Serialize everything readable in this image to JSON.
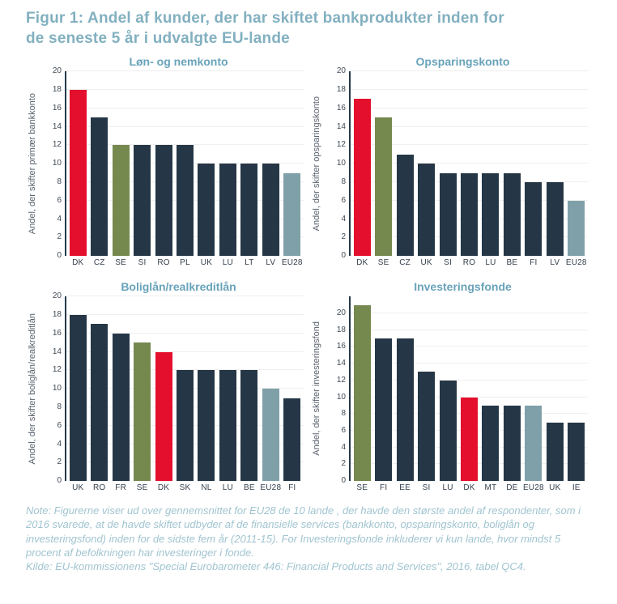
{
  "page": {
    "title_line1": "Figur 1: Andel af kunder, der har skiftet bankprodukter inden for",
    "title_line2": "de seneste 5 år i udvalgte EU-lande"
  },
  "colors": {
    "red": "#e40e2d",
    "navy": "#253746",
    "olive": "#75884e",
    "bluegray": "#7fa0a8",
    "title_blue": "#82b0c0",
    "subtitle_blue": "#69a3ba",
    "note_blue": "#a0c4d0",
    "grid": "#efefef",
    "axis": "#253a4b"
  },
  "chart_data": [
    {
      "type": "bar",
      "title": "Løn- og nemkonto",
      "ylabel": "Andel, der skifter primær bankkonto",
      "categories": [
        "DK",
        "CZ",
        "SE",
        "SI",
        "RO",
        "PL",
        "UK",
        "LU",
        "LT",
        "LV",
        "EU28"
      ],
      "values": [
        18,
        15,
        12,
        12,
        12,
        12,
        10,
        10,
        10,
        10,
        9
      ],
      "bar_colors": [
        "red",
        "navy",
        "olive",
        "navy",
        "navy",
        "navy",
        "navy",
        "navy",
        "navy",
        "navy",
        "bluegray"
      ],
      "ymax": 20,
      "ytick_step": 2,
      "ytick_max": 20,
      "grid": true,
      "legend": "none"
    },
    {
      "type": "bar",
      "title": "Opsparingskonto",
      "ylabel": "Andel, der skifter opsparingskonto",
      "categories": [
        "DK",
        "SE",
        "CZ",
        "UK",
        "SI",
        "RO",
        "LU",
        "BE",
        "FI",
        "LV",
        "EU28"
      ],
      "values": [
        17,
        15,
        11,
        10,
        9,
        9,
        9,
        9,
        8,
        8,
        6
      ],
      "bar_colors": [
        "red",
        "olive",
        "navy",
        "navy",
        "navy",
        "navy",
        "navy",
        "navy",
        "navy",
        "navy",
        "bluegray"
      ],
      "ymax": 20,
      "ytick_step": 2,
      "ytick_max": 20,
      "grid": true,
      "legend": "none"
    },
    {
      "type": "bar",
      "title": "Boliglån/realkreditlån",
      "ylabel": "Andel, der skifter boliglån/realkreditlån",
      "categories": [
        "UK",
        "RO",
        "FR",
        "SE",
        "DK",
        "SK",
        "NL",
        "LU",
        "BE",
        "EU28",
        "FI"
      ],
      "values": [
        18,
        17,
        16,
        15,
        14,
        12,
        12,
        12,
        12,
        10,
        9
      ],
      "bar_colors": [
        "navy",
        "navy",
        "navy",
        "olive",
        "red",
        "navy",
        "navy",
        "navy",
        "navy",
        "bluegray",
        "navy"
      ],
      "ymax": 20,
      "ytick_step": 2,
      "ytick_max": 20,
      "grid": true,
      "legend": "none"
    },
    {
      "type": "bar",
      "title": "Investeringsfonde",
      "ylabel": "Andel, der skifter investeringsfond",
      "categories": [
        "SE",
        "FI",
        "EE",
        "SI",
        "LU",
        "DK",
        "MT",
        "DE",
        "EU28",
        "UK",
        "IE"
      ],
      "values": [
        21,
        17,
        17,
        13,
        12,
        10,
        9,
        9,
        9,
        7,
        7
      ],
      "bar_colors": [
        "olive",
        "navy",
        "navy",
        "navy",
        "navy",
        "red",
        "navy",
        "navy",
        "bluegray",
        "navy",
        "navy"
      ],
      "ymax": 22,
      "ytick_step": 2,
      "ytick_max": 20,
      "grid": true,
      "legend": "none"
    }
  ],
  "note": {
    "body": "Note: Figurerne viser ud over gennemsnittet for EU28 de 10 lande , der havde den største andel af respondenter, som i 2016 svarede, at de havde skiftet udbyder af de finansielle services (bankkonto, opsparingskonto, boliglån og investeringsfond) inden for de sidste fem år (2011-15). For Investeringsfonde inkluderer vi kun lande, hvor mindst 5 procent af befolkningen har investeringer i fonde.",
    "source": "Kilde: EU-kommissionens \"Special Eurobarometer 446: Financial Products and Services\", 2016, tabel QC4."
  }
}
